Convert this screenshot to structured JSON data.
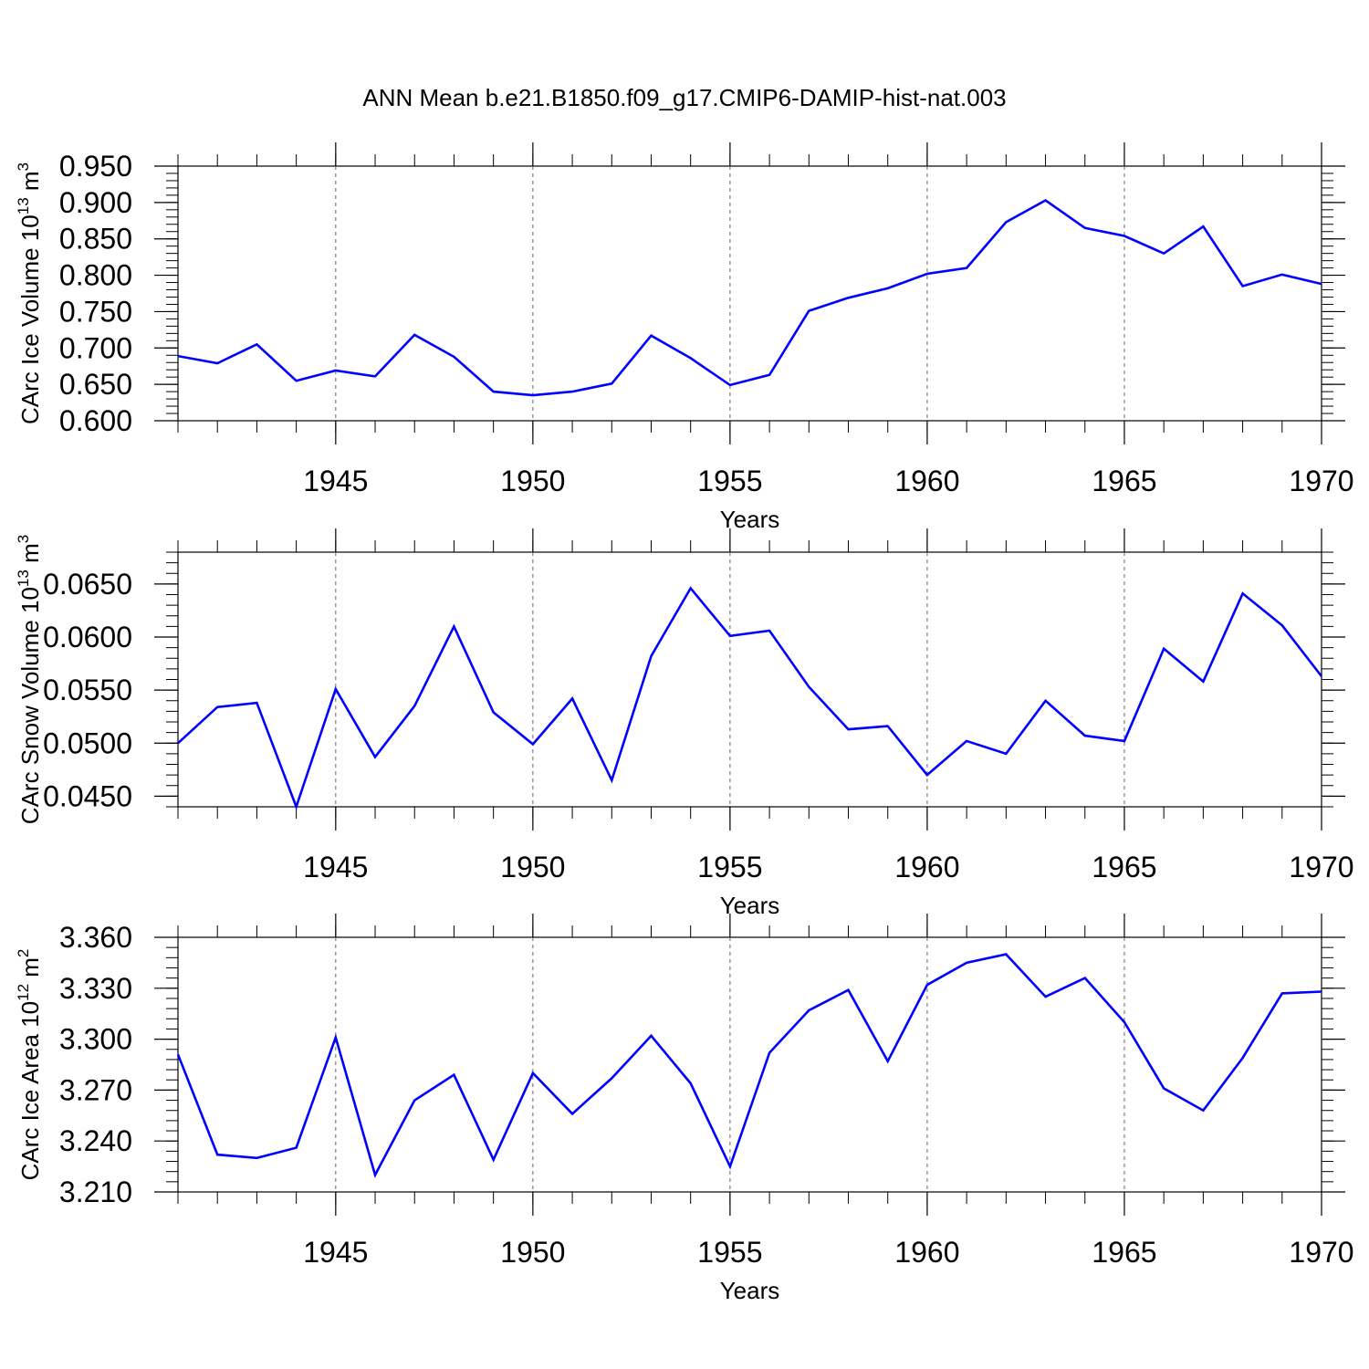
{
  "title": "ANN Mean b.e21.B1850.f09_g17.CMIP6-DAMIP-hist-nat.003",
  "colors": {
    "series": "#0000ff",
    "axes": "#000000",
    "grid": "#666666"
  },
  "chart_data": [
    {
      "type": "line",
      "xlabel": "Years",
      "ylabel": "CArc Ice Volume 10",
      "ylabel_exp": "13",
      "ylabel_unit": "m",
      "ylabel_unit_exp": "3",
      "xlim": [
        1941,
        1970
      ],
      "ylim": [
        0.6,
        0.95
      ],
      "yticks": [
        "0.600",
        "0.650",
        "0.700",
        "0.750",
        "0.800",
        "0.850",
        "0.900",
        "0.950"
      ],
      "xticks": [
        "1945",
        "1950",
        "1955",
        "1960",
        "1965",
        "1970"
      ],
      "grid": "dashed vertical at major x ticks",
      "x": [
        1941,
        1942,
        1943,
        1944,
        1945,
        1946,
        1947,
        1948,
        1949,
        1950,
        1951,
        1952,
        1953,
        1954,
        1955,
        1956,
        1957,
        1958,
        1959,
        1960,
        1961,
        1962,
        1963,
        1964,
        1965,
        1966,
        1967,
        1968,
        1969,
        1970
      ],
      "y": [
        0.689,
        0.679,
        0.705,
        0.655,
        0.669,
        0.661,
        0.718,
        0.688,
        0.64,
        0.635,
        0.64,
        0.651,
        0.717,
        0.686,
        0.649,
        0.663,
        0.751,
        0.769,
        0.782,
        0.802,
        0.81,
        0.873,
        0.903,
        0.865,
        0.854,
        0.83,
        0.867,
        0.785,
        0.801,
        0.788
      ]
    },
    {
      "type": "line",
      "xlabel": "Years",
      "ylabel": "CArc Snow Volume 10",
      "ylabel_exp": "13",
      "ylabel_unit": "m",
      "ylabel_unit_exp": "3",
      "xlim": [
        1941,
        1970
      ],
      "ylim": [
        0.044,
        0.068
      ],
      "yticks": [
        "0.0450",
        "0.0500",
        "0.0550",
        "0.0600",
        "0.0650"
      ],
      "xticks": [
        "1945",
        "1950",
        "1955",
        "1960",
        "1965",
        "1970"
      ],
      "grid": "dashed vertical at major x ticks",
      "x": [
        1941,
        1942,
        1943,
        1944,
        1945,
        1946,
        1947,
        1948,
        1949,
        1950,
        1951,
        1952,
        1953,
        1954,
        1955,
        1956,
        1957,
        1958,
        1959,
        1960,
        1961,
        1962,
        1963,
        1964,
        1965,
        1966,
        1967,
        1968,
        1969,
        1970
      ],
      "y": [
        0.05,
        0.0534,
        0.0538,
        0.044,
        0.0551,
        0.0487,
        0.0535,
        0.061,
        0.0529,
        0.0499,
        0.0542,
        0.0465,
        0.0582,
        0.0646,
        0.0601,
        0.0606,
        0.0553,
        0.0513,
        0.0516,
        0.047,
        0.0502,
        0.049,
        0.054,
        0.0507,
        0.0502,
        0.0589,
        0.0558,
        0.0641,
        0.0611,
        0.0563
      ]
    },
    {
      "type": "line",
      "xlabel": "Years",
      "ylabel": "CArc Ice Area 10",
      "ylabel_exp": "12",
      "ylabel_unit": "m",
      "ylabel_unit_exp": "2",
      "xlim": [
        1941,
        1970
      ],
      "ylim": [
        3.21,
        3.36
      ],
      "yticks": [
        "3.210",
        "3.240",
        "3.270",
        "3.300",
        "3.330",
        "3.360"
      ],
      "xticks": [
        "1945",
        "1950",
        "1955",
        "1960",
        "1965",
        "1970"
      ],
      "grid": "dashed vertical at major x ticks",
      "x": [
        1941,
        1942,
        1943,
        1944,
        1945,
        1946,
        1947,
        1948,
        1949,
        1950,
        1951,
        1952,
        1953,
        1954,
        1955,
        1956,
        1957,
        1958,
        1959,
        1960,
        1961,
        1962,
        1963,
        1964,
        1965,
        1966,
        1967,
        1968,
        1969,
        1970
      ],
      "y": [
        3.291,
        3.232,
        3.23,
        3.236,
        3.301,
        3.22,
        3.264,
        3.279,
        3.229,
        3.28,
        3.256,
        3.277,
        3.302,
        3.274,
        3.225,
        3.292,
        3.317,
        3.329,
        3.287,
        3.332,
        3.345,
        3.35,
        3.325,
        3.336,
        3.31,
        3.271,
        3.258,
        3.289,
        3.327,
        3.328
      ]
    }
  ]
}
